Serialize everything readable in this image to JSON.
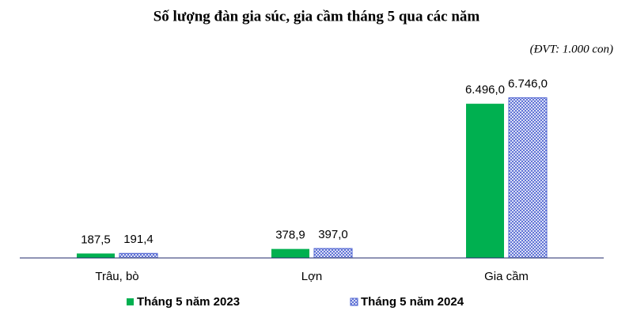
{
  "chart_data": {
    "type": "bar",
    "title": "Số lượng đàn gia súc, gia cầm tháng 5 qua các năm",
    "subtitle": "(ĐVT: 1.000 con)",
    "categories": [
      "Trâu, bò",
      "Lợn",
      "Gia cầm"
    ],
    "series": [
      {
        "name": "Tháng 5 năm 2023",
        "color": "#00b050",
        "values": [
          187.5,
          378.9,
          6496.0
        ],
        "value_labels": [
          "187,5",
          "378,9",
          "6.496,0"
        ]
      },
      {
        "name": "Tháng 5 năm 2024",
        "color": "#4a5fd0",
        "pattern": "cross-hatch",
        "values": [
          191.4,
          397.0,
          6746.0
        ],
        "value_labels": [
          "191,4",
          "397,0",
          "6.746,0"
        ]
      }
    ],
    "ylim": [
      0,
      7000
    ],
    "legend": "bottom"
  }
}
